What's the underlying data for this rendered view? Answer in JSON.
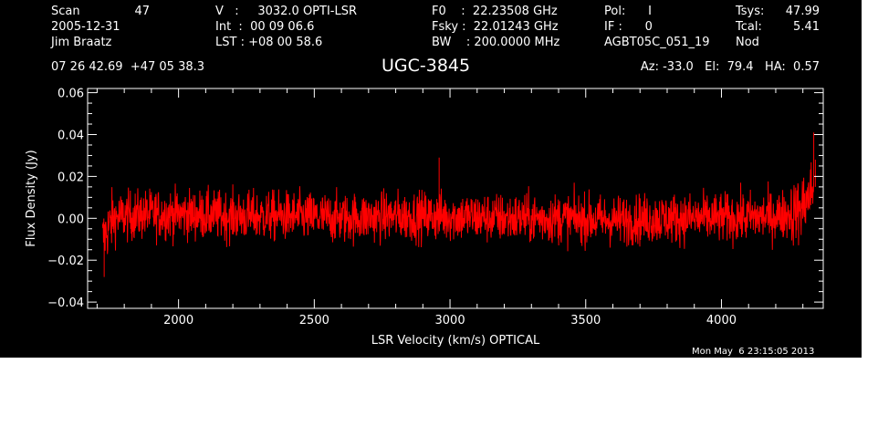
{
  "header": {
    "scan_label": "Scan",
    "scan_number": "47",
    "date": "2005-12-31",
    "observer": "Jim Braatz",
    "velocity_line": "V   :     3032.0 OPTI-LSR",
    "int_line": "Int  :  00 09 06.6",
    "lst_line": "LST : +08 00 58.6",
    "f0_line": "F0    :  22.23508 GHz",
    "fsky_line": "Fsky :  22.01243 GHz",
    "bw_line": "BW    : 200.0000 MHz",
    "pol_line": "Pol:      I",
    "if_line": "IF :      0",
    "project": "AGBT05C_051_19",
    "tsys_label": "Tsys:",
    "tsys_value": "47.99",
    "tcal_label": "Tcal:",
    "tcal_value": "5.41",
    "mode": "Nod",
    "coords": "07 26 42.69  +47 05 38.3",
    "source": "UGC-3845",
    "azel": "Az: -33.0   El:  79.4   HA:  0.57"
  },
  "footer": {
    "timestamp": "Mon May  6 23:15:05 2013"
  },
  "colors": {
    "background": "#000000",
    "axes": "#ffffff",
    "trace": "#ff0000"
  },
  "chart_data": {
    "type": "line",
    "xlabel": "LSR Velocity (km/s) OPTICAL",
    "ylabel": "Flux Density (Jy)",
    "xlim": [
      1665,
      4375
    ],
    "ylim": [
      -0.043,
      0.062
    ],
    "xticks": [
      2000,
      2500,
      3000,
      3500,
      4000
    ],
    "xtick_labels": [
      "2000",
      "2500",
      "3000",
      "3500",
      "4000"
    ],
    "yticks": [
      -0.04,
      -0.02,
      0.0,
      0.02,
      0.04,
      0.06
    ],
    "ytick_labels": [
      "−0.04",
      "−0.02",
      "0.00",
      "0.02",
      "0.04",
      "0.06"
    ],
    "grid": false,
    "series": [
      {
        "x": [
          1720,
          1740,
          1760,
          1800,
          1900,
          2000,
          2200,
          2400,
          2600,
          2800,
          3000,
          3200,
          3400,
          3600,
          3800,
          4000,
          4200,
          4280,
          4300,
          4320,
          4340
        ],
        "y": [
          -0.01,
          -0.005,
          0.0,
          0.001,
          0.002,
          0.002,
          0.001,
          0.001,
          0.0,
          0.001,
          0.001,
          0.0,
          0.0,
          -0.001,
          0.0,
          0.0,
          0.001,
          0.003,
          0.006,
          0.01,
          0.015
        ],
        "noise_rms": 0.006,
        "peak_min": -0.028,
        "peak_max": 0.041
      }
    ]
  }
}
